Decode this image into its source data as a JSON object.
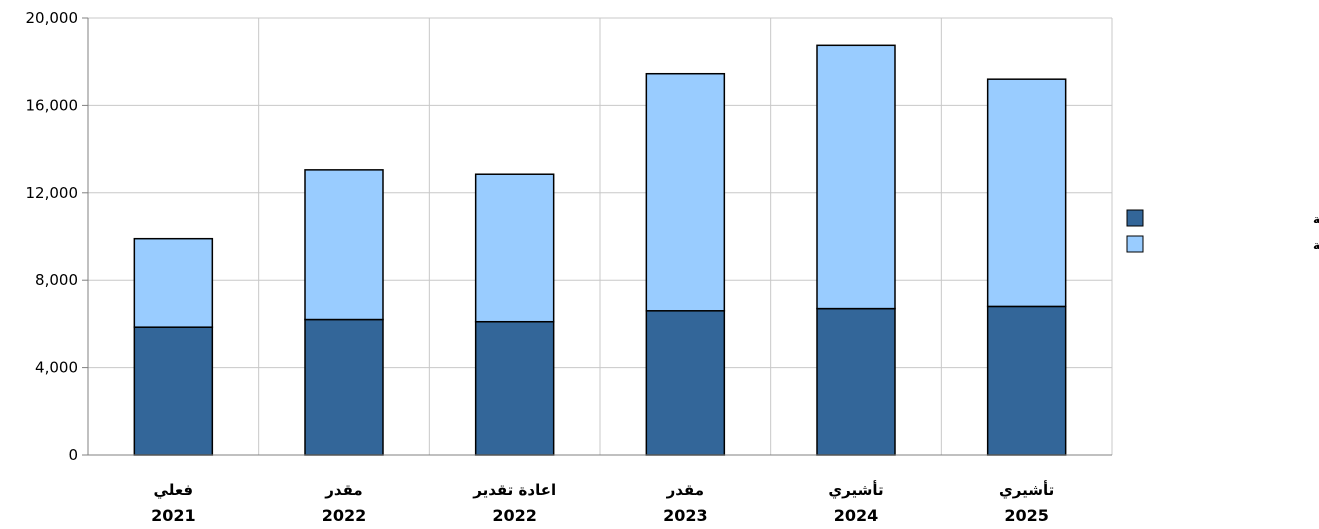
{
  "chart_data": {
    "type": "bar",
    "stacked": true,
    "categories": [
      {
        "label": "فعلي",
        "year": "2021"
      },
      {
        "label": "مقدر",
        "year": "2022"
      },
      {
        "label": "اعادة تقدير",
        "year": "2022"
      },
      {
        "label": "مقدر",
        "year": "2023"
      },
      {
        "label": "تأشيري",
        "year": "2024"
      },
      {
        "label": "تأشيري",
        "year": "2025"
      }
    ],
    "series": [
      {
        "name": "النفقات الجارية",
        "color": "#336699",
        "values": [
          5850,
          6200,
          6100,
          6600,
          6700,
          6800
        ]
      },
      {
        "name": "النفقات الرأسمالية",
        "color": "#99ccff",
        "values": [
          4050,
          6850,
          6750,
          10850,
          12050,
          10400
        ]
      }
    ],
    "ylim": [
      0,
      20000
    ],
    "yticks": [
      "0",
      "4,000",
      "8,000",
      "12,000",
      "16,000",
      "20,000"
    ],
    "ytick_values": [
      0,
      4000,
      8000,
      12000,
      16000,
      20000
    ],
    "grid": true,
    "legend_position": "right",
    "title": "",
    "xlabel": "",
    "ylabel": ""
  }
}
